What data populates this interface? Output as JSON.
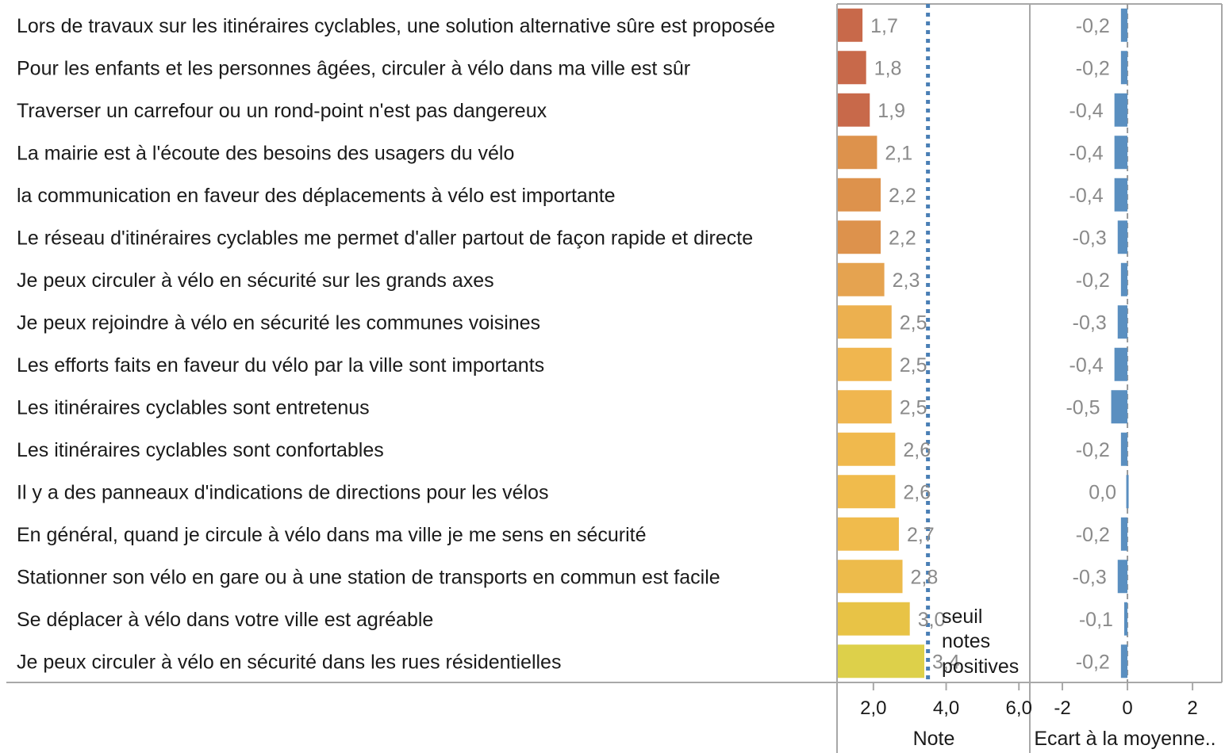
{
  "chart_data": {
    "type": "bar",
    "orientation": "horizontal",
    "categories": [
      "Lors de travaux sur les itinéraires cyclables, une solution alternative sûre est proposée",
      "Pour les enfants et les personnes âgées, circuler à vélo dans ma ville est sûr",
      "Traverser un carrefour ou un rond-point n'est pas dangereux",
      "La mairie est à l'écoute des besoins des usagers du vélo",
      "la communication en faveur des déplacements à vélo est importante",
      "Le réseau d'itinéraires cyclables me permet d'aller partout de façon rapide et directe",
      "Je peux circuler à vélo en sécurité sur les grands axes",
      "Je peux rejoindre à vélo en sécurité les communes voisines",
      "Les efforts faits en faveur du vélo par la ville sont importants",
      "Les itinéraires cyclables sont entretenus",
      "Les itinéraires cyclables sont confortables",
      "Il y a des panneaux d'indications de directions pour les vélos",
      "En général, quand je circule à vélo dans ma ville je me sens en sécurité",
      "Stationner son vélo en gare ou à une station de transports en commun est facile",
      "Se déplacer à vélo dans votre ville est agréable",
      "Je peux circuler à vélo en sécurité dans les rues résidentielles"
    ],
    "panels": [
      {
        "name": "note",
        "xlabel": "Note",
        "ticks": [
          "2,0",
          "4,0",
          "6,0"
        ],
        "tick_values": [
          2,
          4,
          6
        ],
        "xlim": [
          1,
          6.3
        ],
        "values": [
          1.7,
          1.8,
          1.9,
          2.1,
          2.2,
          2.2,
          2.3,
          2.5,
          2.5,
          2.5,
          2.6,
          2.6,
          2.7,
          2.8,
          3.0,
          3.4
        ],
        "labels": [
          "1,7",
          "1,8",
          "1,9",
          "2,1",
          "2,2",
          "2,2",
          "2,3",
          "2,5",
          "2,5",
          "2,5",
          "2,6",
          "2,6",
          "2,7",
          "2,8",
          "3,0",
          "3,4"
        ],
        "colors": [
          "#c8694a",
          "#c8694a",
          "#c8694a",
          "#dd924c",
          "#dd924c",
          "#dd924c",
          "#e5a350",
          "#ecb04f",
          "#f0b64f",
          "#f0b64f",
          "#f0b94d",
          "#f0bb4c",
          "#f0bb4c",
          "#edbb4b",
          "#e8c346",
          "#ddd04a"
        ],
        "reference_line": {
          "value": 3.5,
          "label_lines": [
            "seuil",
            "notes",
            "positives"
          ],
          "color": "#4a7fb5"
        }
      },
      {
        "name": "ecart",
        "xlabel": "Ecart à la moyenne..",
        "ticks": [
          "-2",
          "0",
          "2"
        ],
        "tick_values": [
          -2,
          0,
          2
        ],
        "xlim": [
          -3,
          2.9
        ],
        "values": [
          -0.2,
          -0.2,
          -0.4,
          -0.4,
          -0.4,
          -0.3,
          -0.2,
          -0.3,
          -0.4,
          -0.5,
          -0.2,
          0.0,
          -0.2,
          -0.3,
          -0.1,
          -0.2
        ],
        "labels": [
          "-0,2",
          "-0,2",
          "-0,4",
          "-0,4",
          "-0,4",
          "-0,3",
          "-0,2",
          "-0,3",
          "-0,4",
          "-0,5",
          "-0,2",
          "0,0",
          "-0,2",
          "-0,3",
          "-0,1",
          "-0,2"
        ],
        "bar_color": "#5a8fc0"
      }
    ]
  }
}
